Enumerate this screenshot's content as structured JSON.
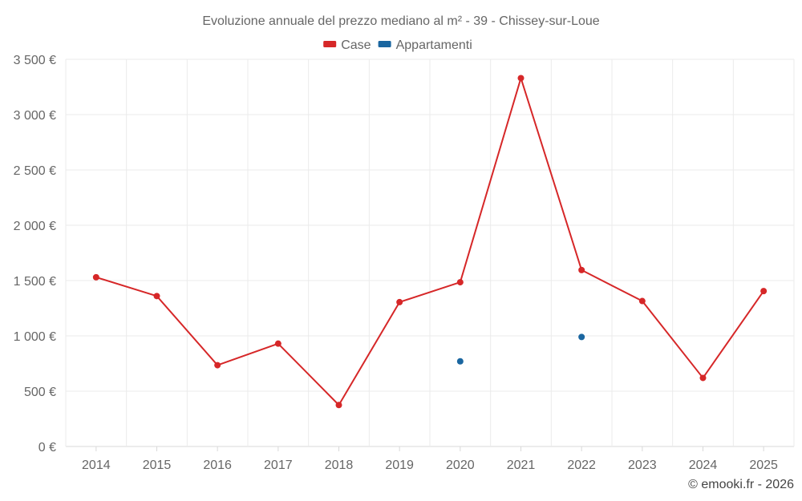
{
  "chart_data": {
    "type": "line",
    "title": "Evoluzione annuale del prezzo mediano al m² - 39 - Chissey-sur-Loue",
    "categories": [
      "2014",
      "2015",
      "2016",
      "2017",
      "2018",
      "2019",
      "2020",
      "2021",
      "2022",
      "2023",
      "2024",
      "2025"
    ],
    "series": [
      {
        "name": "Case",
        "color": "#d62728",
        "values": [
          1530,
          1360,
          735,
          930,
          375,
          1305,
          1485,
          3330,
          1595,
          1315,
          620,
          1405
        ]
      },
      {
        "name": "Appartamenti",
        "color": "#1a66a0",
        "values": [
          null,
          null,
          null,
          null,
          null,
          null,
          770,
          null,
          990,
          null,
          null,
          null
        ]
      }
    ],
    "ylim": [
      0,
      3500
    ],
    "yticks": [
      0,
      500,
      1000,
      1500,
      2000,
      2500,
      3000,
      3500
    ],
    "ytick_labels": [
      "0 €",
      "500 €",
      "1 000 €",
      "1 500 €",
      "2 000 €",
      "2 500 €",
      "3 000 €",
      "3 500 €"
    ],
    "grid": true,
    "legend_position": "top-center",
    "xlabel": "",
    "ylabel": ""
  },
  "credit": "© emooki.fr - 2026"
}
